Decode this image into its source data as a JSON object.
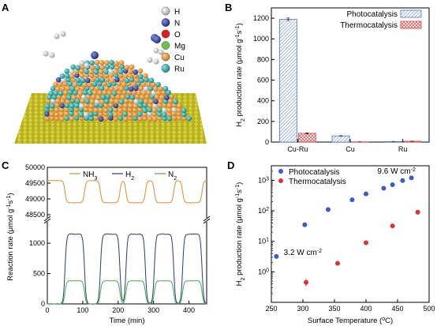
{
  "panels": {
    "a": {
      "label": "A",
      "legend": [
        {
          "symbol": "H",
          "color": "#e8e8e8"
        },
        {
          "symbol": "N",
          "color": "#2a3a9c"
        },
        {
          "symbol": "O",
          "color": "#d62020"
        },
        {
          "symbol": "Mg",
          "color": "#6cc04a"
        },
        {
          "symbol": "Cu",
          "color": "#e08a2a"
        },
        {
          "symbol": "Ru",
          "color": "#17a2a0"
        }
      ]
    }
  },
  "chart_data": [
    {
      "panel": "B",
      "type": "bar",
      "categories": [
        "Cu-Ru",
        "Cu",
        "Ru"
      ],
      "series": [
        {
          "name": "Photocatalysis",
          "values": [
            1190,
            60,
            5
          ],
          "errors": [
            12,
            2,
            1
          ],
          "color": "#4a6fd0",
          "hatch": "diag"
        },
        {
          "name": "Thermocatalysis",
          "values": [
            85,
            2,
            8
          ],
          "errors": [
            5,
            1,
            1
          ],
          "color": "#e04040",
          "hatch": "cross"
        }
      ],
      "ylabel": "H2 production rate (μmol g⁻¹s⁻¹)",
      "ylim": [
        0,
        1300
      ],
      "yticks": [
        0,
        200,
        400,
        600,
        800,
        1000,
        1200
      ],
      "legend_position": "top-right"
    },
    {
      "panel": "C",
      "type": "line",
      "xlabel": "Time (min)",
      "ylabel": "Reaction rate (μmol g⁻¹s⁻¹)",
      "xlim": [
        0,
        450
      ],
      "xticks": [
        0,
        100,
        200,
        300,
        400
      ],
      "upper_yticks": [
        48500,
        49000,
        49500,
        50000
      ],
      "upper_ylim": [
        48500,
        50000
      ],
      "lower_yticks": [
        0,
        500,
        1000
      ],
      "lower_ylim": [
        0,
        1300
      ],
      "axis_break": true,
      "cycles_on": [
        [
          50,
          105
        ],
        [
          150,
          205
        ],
        [
          222,
          277
        ],
        [
          302,
          357
        ],
        [
          382,
          437
        ]
      ],
      "series": [
        {
          "name": "NH3",
          "subscript": "3",
          "color": "#e08a2a",
          "baseline": 49580,
          "active": 48880
        },
        {
          "name": "H2",
          "subscript": "2",
          "color": "#2a3a7c",
          "baseline": 0,
          "active": 1150
        },
        {
          "name": "N2",
          "subscript": "2",
          "color": "#40b040",
          "baseline": 0,
          "active": 380
        }
      ]
    },
    {
      "panel": "D",
      "type": "scatter",
      "xlabel": "Surface Temperature (°C)",
      "ylabel": "H2 production rate (μmol g⁻¹s⁻¹)",
      "xlim": [
        250,
        500
      ],
      "xticks": [
        250,
        300,
        350,
        400,
        450,
        500
      ],
      "yscale": "log",
      "ylim": [
        0.1,
        3000
      ],
      "series": [
        {
          "name": "Photocatalysis",
          "color": "#3a5ad0",
          "x": [
            258,
            303,
            340,
            378,
            400,
            428,
            442,
            458,
            472
          ],
          "y": [
            3.2,
            35,
            110,
            230,
            360,
            550,
            720,
            980,
            1200
          ]
        },
        {
          "name": "Thermocatalysis",
          "color": "#e03030",
          "x": [
            305,
            355,
            400,
            442,
            482
          ],
          "y": [
            0.45,
            1.9,
            9,
            32,
            90
          ]
        }
      ],
      "annotations": [
        {
          "text": "3.2 W cm⁻²",
          "x": 262,
          "y": 3.2
        },
        {
          "text": "9.6 W cm⁻²",
          "x": 418,
          "y": 1300
        }
      ],
      "legend_position": "top-left"
    }
  ]
}
